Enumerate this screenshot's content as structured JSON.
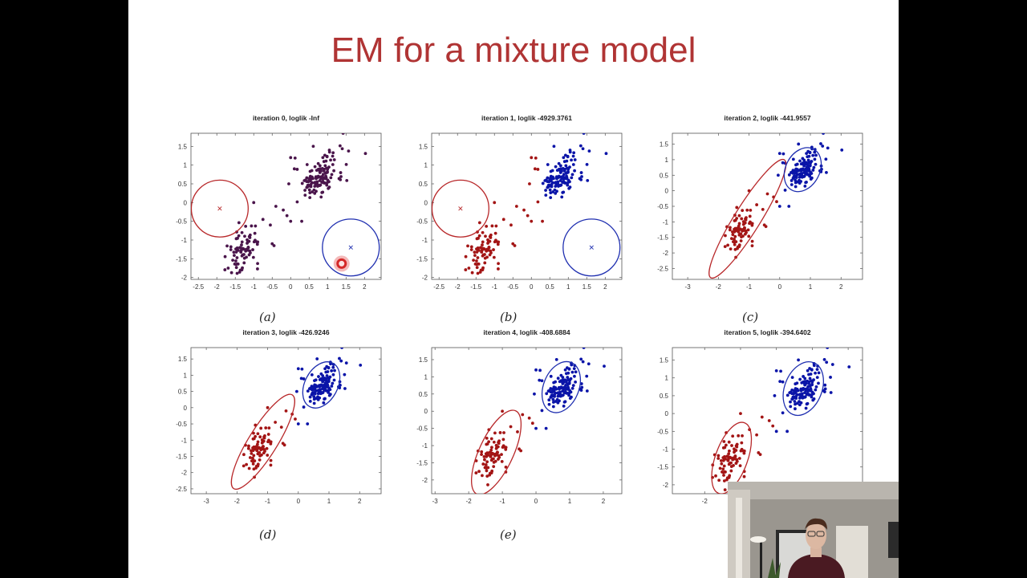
{
  "slide": {
    "title": "EM for a mixture model",
    "title_color": "#b03434"
  },
  "panels": [
    {
      "caption": "(a)",
      "title": "iteration 0, loglik  -Inf"
    },
    {
      "caption": "(b)",
      "title": "iteration 1, loglik -4929.3761"
    },
    {
      "caption": "(c)",
      "title": "iteration 2, loglik -441.9557"
    },
    {
      "caption": "(d)",
      "title": "iteration 3, loglik -426.9246"
    },
    {
      "caption": "(e)",
      "title": "iteration 4, loglik -408.6884"
    },
    {
      "caption": "",
      "title": "iteration 5, loglik -394.6402"
    }
  ],
  "colors": {
    "red_cluster": "#a31515",
    "blue_cluster": "#0a14a8",
    "unassigned": "#4a154b"
  },
  "chart_data": [
    {
      "type": "scatter",
      "title": "iteration 0, loglik  -Inf",
      "xlim": [
        -2.7,
        2.45
      ],
      "ylim": [
        -2.05,
        1.85
      ],
      "xticks": [
        -2.5,
        -2,
        -1.5,
        -1,
        -0.5,
        0,
        0.5,
        1,
        1.5,
        2
      ],
      "yticks": [
        -2,
        -1.5,
        -1,
        -0.5,
        0,
        0.5,
        1,
        1.5
      ],
      "components": [
        {
          "color": "red",
          "mean": [
            -1.92,
            -0.16
          ],
          "shape": "circle",
          "radius_x": 0.77
        },
        {
          "color": "blue",
          "mean": [
            1.63,
            -1.2
          ],
          "shape": "circle",
          "radius_x": 0.77
        }
      ],
      "point_coloring": "all purple (unassigned)"
    },
    {
      "type": "scatter",
      "title": "iteration 1, loglik -4929.3761",
      "xlim": [
        -2.7,
        2.45
      ],
      "ylim": [
        -2.05,
        1.85
      ],
      "xticks": [
        -2.5,
        -2,
        -1.5,
        -1,
        -0.5,
        0,
        0.5,
        1,
        1.5,
        2
      ],
      "yticks": [
        -2,
        -1.5,
        -1,
        -0.5,
        0,
        0.5,
        1,
        1.5
      ],
      "components": [
        {
          "color": "red",
          "mean": [
            -1.92,
            -0.16
          ],
          "shape": "circle",
          "radius_x": 0.77
        },
        {
          "color": "blue",
          "mean": [
            1.63,
            -1.2
          ],
          "shape": "circle",
          "radius_x": 0.77
        }
      ],
      "point_coloring": "red/blue by responsibility"
    },
    {
      "type": "scatter",
      "title": "iteration 2, loglik -441.9557",
      "xlim": [
        -3.5,
        2.7
      ],
      "ylim": [
        -2.85,
        1.85
      ],
      "xticks": [
        -3,
        -2,
        -1,
        0,
        1,
        2
      ],
      "yticks": [
        -2.5,
        -2,
        -1.5,
        -1,
        -0.5,
        0,
        0.5,
        1,
        1.5
      ],
      "components": [
        {
          "color": "red",
          "mean": [
            -1.05,
            -0.9
          ],
          "shape": "ellipse"
        },
        {
          "color": "blue",
          "mean": [
            0.75,
            0.68
          ],
          "shape": "ellipse"
        }
      ]
    },
    {
      "type": "scatter",
      "title": "iteration 3, loglik -426.9246",
      "xlim": [
        -3.5,
        2.7
      ],
      "ylim": [
        -2.65,
        1.85
      ],
      "xticks": [
        -3,
        -2,
        -1,
        0,
        1,
        2
      ],
      "yticks": [
        -2.5,
        -2,
        -1.5,
        -1,
        -0.5,
        0,
        0.5,
        1,
        1.5
      ],
      "components": [
        {
          "color": "red",
          "mean": [
            -1.15,
            -1.05
          ],
          "shape": "ellipse"
        },
        {
          "color": "blue",
          "mean": [
            0.75,
            0.7
          ],
          "shape": "ellipse"
        }
      ]
    },
    {
      "type": "scatter",
      "title": "iteration 4, loglik -408.6884",
      "xlim": [
        -3.1,
        2.55
      ],
      "ylim": [
        -2.4,
        1.85
      ],
      "xticks": [
        -3,
        -2,
        -1,
        0,
        1,
        2
      ],
      "yticks": [
        -2,
        -1.5,
        -1,
        -0.5,
        0,
        0.5,
        1,
        1.5
      ],
      "components": [
        {
          "color": "red",
          "mean": [
            -1.18,
            -1.2
          ],
          "shape": "ellipse"
        },
        {
          "color": "blue",
          "mean": [
            0.75,
            0.7
          ],
          "shape": "ellipse"
        }
      ]
    },
    {
      "type": "scatter",
      "title": "iteration 5, loglik -394.6402",
      "xlim": [
        -2.9,
        2.4
      ],
      "ylim": [
        -2.25,
        1.85
      ],
      "xticks": [
        -2,
        -1,
        0,
        1,
        2
      ],
      "yticks": [
        -2,
        -1.5,
        -1,
        -0.5,
        0,
        0.5,
        1,
        1.5
      ],
      "components": [
        {
          "color": "red",
          "mean": [
            -1.25,
            -1.25
          ],
          "shape": "ellipse"
        },
        {
          "color": "blue",
          "mean": [
            0.75,
            0.7
          ],
          "shape": "ellipse"
        }
      ]
    }
  ]
}
